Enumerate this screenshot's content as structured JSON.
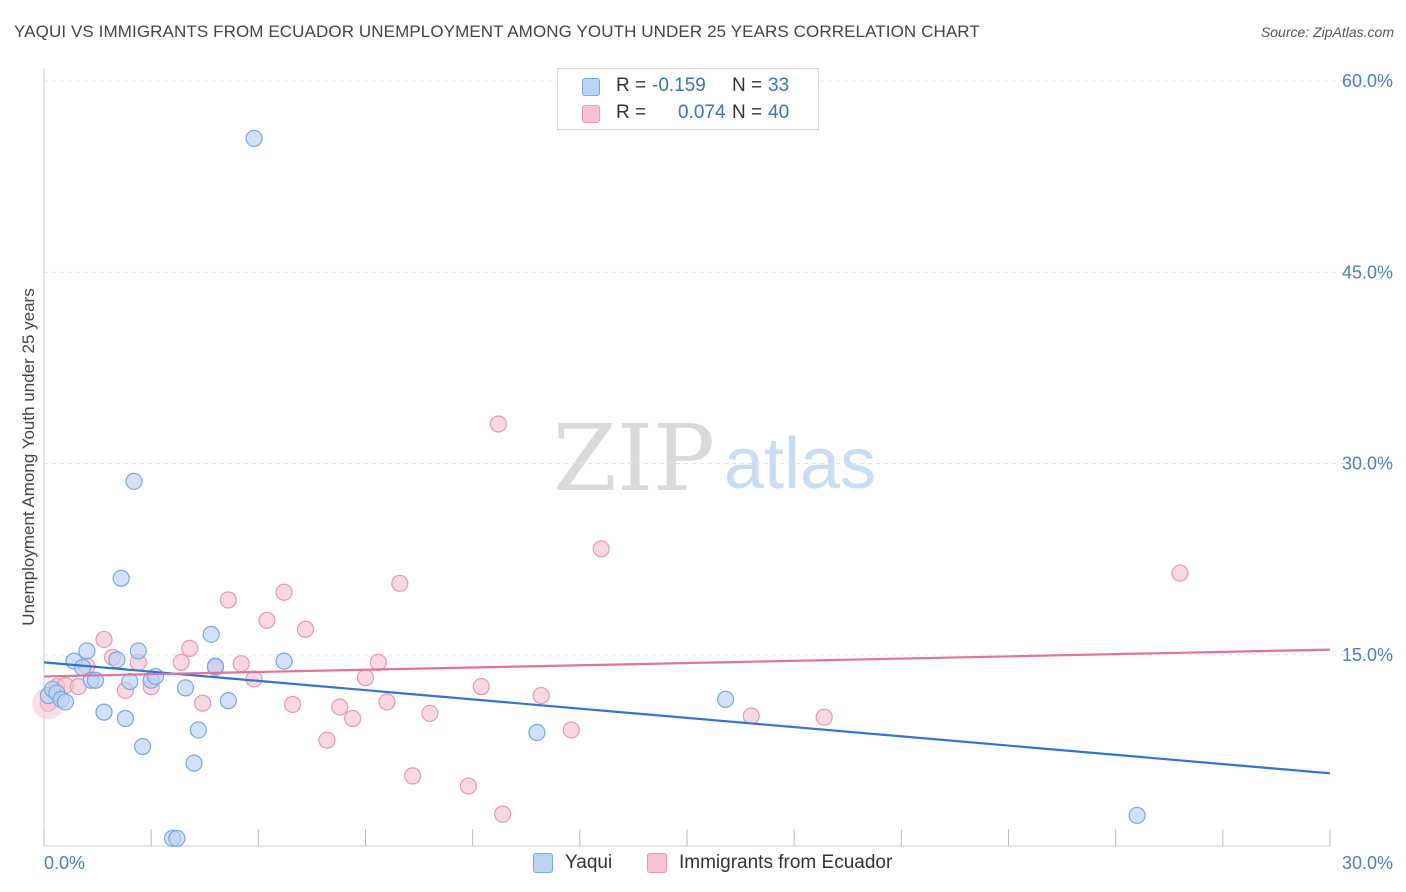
{
  "title": "YAQUI VS IMMIGRANTS FROM ECUADOR UNEMPLOYMENT AMONG YOUTH UNDER 25 YEARS CORRELATION CHART",
  "source": "Source: ZipAtlas.com",
  "watermark": {
    "zip": "ZIP",
    "atlas": "atlas"
  },
  "legend": {
    "r_label": "R =",
    "n_label": "N =",
    "rows": [
      {
        "r": "-0.159",
        "n": "33"
      },
      {
        "r": "0.074",
        "n": "40"
      }
    ]
  },
  "colors": {
    "yaqui_fill": "#b9d3f4",
    "yaqui_stroke": "#7aa6de",
    "yaqui_line": "#2f74d0",
    "ecuador_fill": "#f7c3d3",
    "ecuador_stroke": "#e996b2",
    "ecuador_line": "#e0739b",
    "tick_text": "#4a7ec9",
    "grid": "#e3e3e3"
  },
  "chart_data": {
    "type": "scatter",
    "title": "YAQUI VS IMMIGRANTS FROM ECUADOR UNEMPLOYMENT AMONG YOUTH UNDER 25 YEARS CORRELATION CHART",
    "xlabel": "",
    "ylabel": "Unemployment Among Youth under 25 years",
    "xlim": [
      0,
      30
    ],
    "ylim": [
      0,
      62
    ],
    "x_tick_labels": [
      "0.0%",
      "30.0%"
    ],
    "y_ticks": [
      15,
      30,
      45,
      60
    ],
    "y_tick_labels": [
      "15.0%",
      "30.0%",
      "45.0%",
      "60.0%"
    ],
    "legend_position": "top-center",
    "series": [
      {
        "name": "Yaqui",
        "r": -0.159,
        "n": 33,
        "trend": {
          "x": [
            0,
            30
          ],
          "y": [
            14.4,
            5.7
          ]
        },
        "points": [
          [
            0.1,
            11.8
          ],
          [
            0.2,
            12.3
          ],
          [
            0.3,
            12.0
          ],
          [
            0.4,
            11.5
          ],
          [
            0.5,
            11.3
          ],
          [
            0.7,
            14.5
          ],
          [
            0.9,
            14.0
          ],
          [
            1.0,
            15.3
          ],
          [
            1.1,
            13.0
          ],
          [
            1.2,
            13.0
          ],
          [
            1.4,
            10.5
          ],
          [
            1.7,
            14.6
          ],
          [
            1.8,
            21.0
          ],
          [
            1.9,
            10.0
          ],
          [
            2.0,
            12.9
          ],
          [
            2.1,
            28.6
          ],
          [
            2.2,
            15.3
          ],
          [
            2.3,
            7.8
          ],
          [
            2.5,
            13.0
          ],
          [
            2.6,
            13.3
          ],
          [
            3.0,
            0.6
          ],
          [
            3.1,
            0.6
          ],
          [
            3.3,
            12.4
          ],
          [
            3.5,
            6.5
          ],
          [
            3.6,
            9.1
          ],
          [
            3.9,
            16.6
          ],
          [
            4.0,
            14.1
          ],
          [
            4.3,
            11.4
          ],
          [
            4.9,
            55.5
          ],
          [
            5.6,
            14.5
          ],
          [
            11.5,
            8.9
          ],
          [
            15.9,
            11.5
          ],
          [
            25.5,
            2.4
          ]
        ]
      },
      {
        "name": "Immigrants from Ecuador",
        "r": 0.074,
        "n": 40,
        "trend": {
          "x": [
            0,
            30
          ],
          "y": [
            13.3,
            15.4
          ]
        },
        "points": [
          [
            0.1,
            11.2
          ],
          [
            0.3,
            12.5
          ],
          [
            0.5,
            12.6
          ],
          [
            0.8,
            12.5
          ],
          [
            1.0,
            14.1
          ],
          [
            1.4,
            16.2
          ],
          [
            1.6,
            14.8
          ],
          [
            1.9,
            12.2
          ],
          [
            2.2,
            14.4
          ],
          [
            2.5,
            12.5
          ],
          [
            3.2,
            14.4
          ],
          [
            3.4,
            15.5
          ],
          [
            3.7,
            11.2
          ],
          [
            4.0,
            14.0
          ],
          [
            4.3,
            19.3
          ],
          [
            4.6,
            14.3
          ],
          [
            4.9,
            13.1
          ],
          [
            5.2,
            17.7
          ],
          [
            5.6,
            19.9
          ],
          [
            5.8,
            11.1
          ],
          [
            6.1,
            17.0
          ],
          [
            6.6,
            8.3
          ],
          [
            6.9,
            10.9
          ],
          [
            7.2,
            10.0
          ],
          [
            7.5,
            13.2
          ],
          [
            7.8,
            14.4
          ],
          [
            8.0,
            11.3
          ],
          [
            8.3,
            20.6
          ],
          [
            8.6,
            5.5
          ],
          [
            9.0,
            10.4
          ],
          [
            9.9,
            4.7
          ],
          [
            10.2,
            12.5
          ],
          [
            10.6,
            33.1
          ],
          [
            10.7,
            2.5
          ],
          [
            11.6,
            11.8
          ],
          [
            12.3,
            9.1
          ],
          [
            13.0,
            23.3
          ],
          [
            16.5,
            10.2
          ],
          [
            18.2,
            10.1
          ],
          [
            26.5,
            21.4
          ]
        ]
      }
    ]
  }
}
